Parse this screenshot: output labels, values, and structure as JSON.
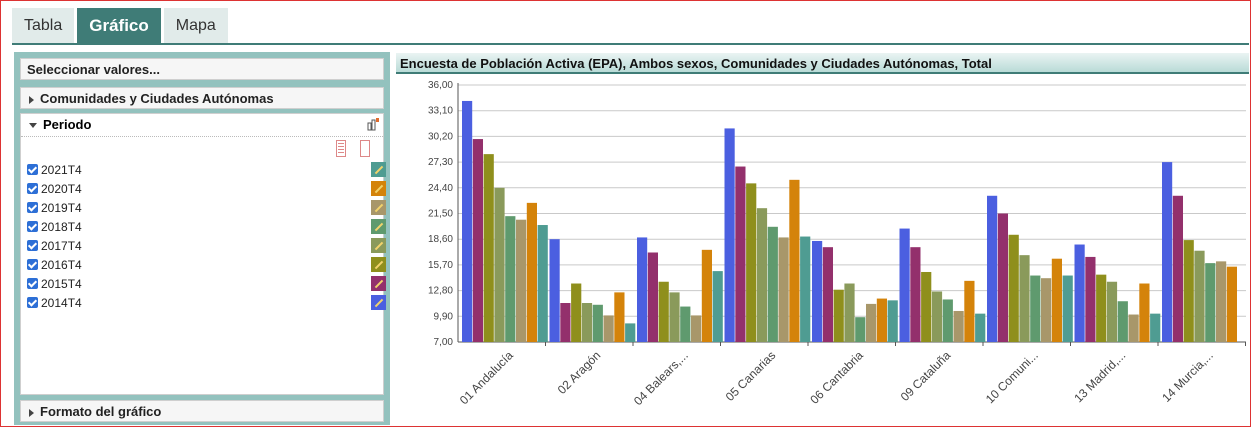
{
  "tabs": [
    {
      "label": "Tabla",
      "active": false
    },
    {
      "label": "Gráfico",
      "active": true
    },
    {
      "label": "Mapa",
      "active": false
    }
  ],
  "sidebar": {
    "select_values": "Seleccionar valores...",
    "regions_header": "Comunidades y Ciudades Autónomas",
    "period_header": "Periodo",
    "format_header": "Formato del gráfico",
    "periods": [
      {
        "label": "2021T4",
        "checked": true,
        "color": "#4f9c92"
      },
      {
        "label": "2020T4",
        "checked": true,
        "color": "#d4830a"
      },
      {
        "label": "2019T4",
        "checked": true,
        "color": "#a8976a"
      },
      {
        "label": "2018T4",
        "checked": true,
        "color": "#5f9a6e"
      },
      {
        "label": "2017T4",
        "checked": true,
        "color": "#8a9a5b"
      },
      {
        "label": "2016T4",
        "checked": true,
        "color": "#8f8f1c"
      },
      {
        "label": "2015T4",
        "checked": true,
        "color": "#93306c"
      },
      {
        "label": "2014T4",
        "checked": true,
        "color": "#4b5fe0"
      }
    ]
  },
  "chart_data": {
    "type": "bar",
    "title": "Encuesta de Población Activa (EPA), Ambos sexos, Comunidades y Ciudades Autónomas, Total",
    "ylim": [
      7.0,
      36.0
    ],
    "yticks": [
      "7,00",
      "9,90",
      "12,80",
      "15,70",
      "18,60",
      "21,50",
      "24,40",
      "27,30",
      "30,20",
      "33,10",
      "36,00"
    ],
    "grid": true,
    "categories": [
      "01 Andalucía",
      "02 Aragón",
      "04 Balears,...",
      "05 Canarias",
      "06 Cantabria",
      "09 Cataluña",
      "10 Comuni...",
      "13 Madrid,...",
      "14 Murcia,..."
    ],
    "series": [
      {
        "name": "2014T4",
        "color": "#4b5fe0",
        "values": [
          34.2,
          18.6,
          18.8,
          31.1,
          18.4,
          19.8,
          23.5,
          18.0,
          27.3
        ]
      },
      {
        "name": "2015T4",
        "color": "#93306c",
        "values": [
          29.9,
          11.4,
          17.1,
          26.8,
          17.7,
          17.7,
          21.5,
          16.6,
          23.5
        ]
      },
      {
        "name": "2016T4",
        "color": "#8f8f1c",
        "values": [
          28.2,
          13.6,
          13.8,
          24.9,
          12.9,
          14.9,
          19.1,
          14.6,
          18.5
        ]
      },
      {
        "name": "2017T4",
        "color": "#8a9a5b",
        "values": [
          24.4,
          11.4,
          12.6,
          22.1,
          13.6,
          12.7,
          16.8,
          13.8,
          17.3
        ]
      },
      {
        "name": "2018T4",
        "color": "#5f9a6e",
        "values": [
          21.2,
          11.2,
          11.0,
          20.0,
          9.8,
          11.8,
          14.5,
          11.6,
          15.9
        ]
      },
      {
        "name": "2019T4",
        "color": "#a8976a",
        "values": [
          20.8,
          10.0,
          10.0,
          18.8,
          11.3,
          10.5,
          14.2,
          10.1,
          16.1
        ]
      },
      {
        "name": "2020T4",
        "color": "#d4830a",
        "values": [
          22.7,
          12.6,
          17.4,
          25.3,
          11.9,
          13.9,
          16.4,
          13.6,
          15.5
        ]
      },
      {
        "name": "2021T4",
        "color": "#4f9c92",
        "values": [
          20.2,
          9.1,
          15.0,
          18.9,
          11.7,
          10.2,
          14.5,
          10.2,
          13.0
        ]
      }
    ]
  }
}
